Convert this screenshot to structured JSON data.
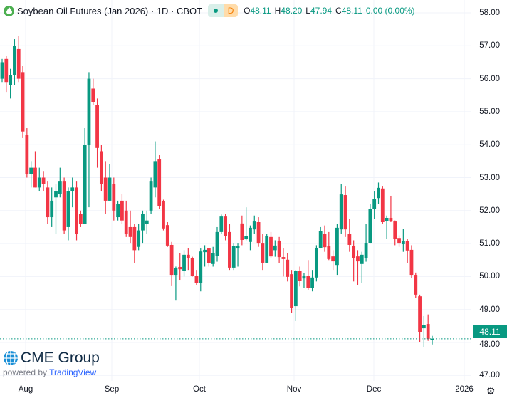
{
  "header": {
    "title": "Soybean Oil Futures (Jan 2026) · 1D · CBOT",
    "badge_letter": "D",
    "o_label": "O",
    "o": "48.11",
    "h_label": "H",
    "h": "48.20",
    "l_label": "L",
    "l": "47.94",
    "c_label": "C",
    "c": "48.11",
    "change": "0.00 (0.00%)"
  },
  "colors": {
    "up": "#089981",
    "down": "#f23645",
    "grid": "#f0f3fa"
  },
  "branding": {
    "logo": "CME Group",
    "powered": "powered by",
    "tv": "TradingView"
  },
  "chart_data": {
    "type": "candlestick",
    "title": "Soybean Oil Futures (Jan 2026) · 1D · CBOT",
    "ylim": [
      47,
      58
    ],
    "y_ticks": [
      "58.00",
      "57.00",
      "56.00",
      "55.00",
      "54.00",
      "53.00",
      "52.00",
      "51.00",
      "50.00",
      "49.00",
      "48.00",
      "47.00"
    ],
    "x_ticks": [
      "Aug",
      "Sep",
      "Oct",
      "Nov",
      "Dec",
      "2026"
    ],
    "last_price": "48.11",
    "grid": true,
    "candles_ohlc": [
      [
        56.0,
        56.6,
        55.9,
        56.5
      ],
      [
        56.6,
        56.7,
        55.6,
        55.9
      ],
      [
        55.8,
        56.3,
        55.4,
        56.1
      ],
      [
        56.1,
        57.2,
        55.8,
        57.0
      ],
      [
        56.9,
        57.3,
        55.9,
        56.0
      ],
      [
        56.2,
        56.4,
        54.2,
        54.4
      ],
      [
        54.3,
        54.5,
        53.0,
        53.1
      ],
      [
        53.1,
        53.5,
        52.7,
        53.3
      ],
      [
        53.3,
        53.8,
        52.7,
        52.7
      ],
      [
        52.7,
        53.3,
        52.6,
        53.0
      ],
      [
        53.0,
        53.2,
        52.6,
        52.8
      ],
      [
        52.7,
        52.9,
        51.6,
        51.8
      ],
      [
        51.8,
        52.7,
        51.5,
        52.3
      ],
      [
        52.4,
        52.8,
        51.3,
        52.6
      ],
      [
        52.5,
        53.3,
        52.4,
        52.9
      ],
      [
        52.9,
        53.0,
        51.3,
        51.4
      ],
      [
        51.5,
        52.7,
        51.1,
        52.6
      ],
      [
        52.6,
        53.0,
        52.1,
        52.7
      ],
      [
        52.7,
        52.9,
        51.1,
        51.3
      ],
      [
        51.9,
        52.0,
        51.5,
        51.6
      ],
      [
        51.6,
        54.5,
        51.6,
        54.0
      ],
      [
        54.0,
        56.2,
        52.1,
        56.0
      ],
      [
        55.7,
        56.0,
        55.2,
        55.3
      ],
      [
        55.2,
        55.4,
        53.3,
        53.9
      ],
      [
        53.8,
        54.0,
        52.6,
        52.8
      ],
      [
        53.0,
        53.5,
        51.9,
        52.3
      ],
      [
        52.3,
        53.4,
        52.3,
        53.0
      ],
      [
        52.8,
        53.0,
        51.7,
        52.0
      ],
      [
        51.8,
        52.3,
        51.7,
        52.2
      ],
      [
        52.3,
        52.5,
        51.6,
        51.7
      ],
      [
        52.0,
        52.3,
        51.2,
        51.3
      ],
      [
        51.5,
        52.0,
        51.0,
        51.2
      ],
      [
        51.5,
        51.6,
        50.4,
        50.8
      ],
      [
        50.9,
        51.6,
        50.8,
        51.4
      ],
      [
        51.4,
        52.0,
        51.0,
        51.9
      ],
      [
        51.6,
        52.0,
        51.3,
        51.7
      ],
      [
        52.0,
        53.0,
        51.9,
        52.9
      ],
      [
        52.7,
        54.1,
        52.4,
        53.5
      ],
      [
        53.55,
        53.68,
        52.05,
        52.13
      ],
      [
        52.28,
        52.33,
        51.4,
        51.46
      ],
      [
        51.56,
        51.65,
        50.9,
        50.94
      ],
      [
        50.96,
        51.05,
        49.73,
        50.05
      ],
      [
        50.05,
        50.3,
        49.27,
        50.25
      ],
      [
        50.29,
        50.7,
        49.9,
        50.22
      ],
      [
        50.18,
        50.8,
        50.0,
        50.66
      ],
      [
        50.66,
        50.85,
        50.2,
        50.55
      ],
      [
        50.57,
        50.6,
        50.0,
        50.03
      ],
      [
        50.03,
        50.2,
        49.75,
        49.81
      ],
      [
        49.81,
        50.85,
        49.55,
        50.76
      ],
      [
        50.74,
        50.95,
        50.3,
        50.81
      ],
      [
        50.85,
        50.85,
        50.3,
        50.4
      ],
      [
        50.38,
        50.9,
        50.3,
        50.72
      ],
      [
        50.63,
        51.5,
        50.45,
        51.35
      ],
      [
        51.35,
        51.88,
        51.3,
        51.82
      ],
      [
        51.82,
        51.9,
        51.1,
        51.24
      ],
      [
        51.35,
        51.6,
        50.2,
        50.27
      ],
      [
        50.27,
        51.0,
        50.2,
        50.92
      ],
      [
        50.85,
        51.0,
        50.3,
        50.92
      ],
      [
        51.61,
        51.85,
        50.95,
        51.11
      ],
      [
        51.13,
        52.1,
        51.1,
        51.22
      ],
      [
        51.05,
        51.55,
        50.8,
        51.48
      ],
      [
        51.43,
        51.85,
        51.3,
        51.67
      ],
      [
        51.65,
        51.8,
        50.9,
        51.0
      ],
      [
        51.0,
        51.3,
        50.2,
        50.42
      ],
      [
        50.42,
        51.3,
        50.4,
        51.22
      ],
      [
        51.2,
        51.35,
        50.55,
        50.61
      ],
      [
        50.8,
        51.1,
        50.6,
        50.94
      ],
      [
        51.09,
        51.2,
        50.4,
        50.59
      ],
      [
        50.59,
        50.85,
        50.0,
        50.53
      ],
      [
        50.51,
        50.7,
        49.85,
        49.99
      ],
      [
        50.07,
        50.2,
        48.9,
        49.04
      ],
      [
        49.1,
        50.2,
        48.65,
        50.18
      ],
      [
        50.18,
        50.3,
        49.7,
        49.86
      ],
      [
        49.94,
        50.1,
        49.65,
        50.01
      ],
      [
        50.01,
        50.5,
        49.6,
        49.66
      ],
      [
        49.66,
        50.2,
        49.55,
        49.97
      ],
      [
        49.97,
        50.95,
        49.85,
        50.87
      ],
      [
        50.87,
        51.5,
        50.85,
        51.39
      ],
      [
        51.3,
        51.55,
        50.75,
        50.89
      ],
      [
        50.92,
        51.35,
        50.5,
        50.53
      ],
      [
        50.61,
        50.8,
        50.2,
        50.46
      ],
      [
        50.35,
        51.6,
        50.05,
        51.48
      ],
      [
        51.43,
        52.8,
        51.3,
        52.49
      ],
      [
        52.47,
        52.75,
        51.2,
        51.43
      ],
      [
        51.3,
        51.75,
        50.75,
        50.96
      ],
      [
        50.92,
        51.1,
        49.85,
        50.55
      ],
      [
        50.61,
        50.8,
        49.75,
        50.46
      ],
      [
        50.38,
        50.75,
        49.8,
        50.66
      ],
      [
        50.57,
        51.6,
        50.45,
        51.02
      ],
      [
        51.02,
        52.2,
        51.0,
        52.04
      ],
      [
        52.04,
        52.6,
        51.75,
        52.36
      ],
      [
        52.38,
        52.85,
        52.2,
        52.69
      ],
      [
        52.67,
        52.75,
        51.6,
        51.65
      ],
      [
        51.69,
        51.85,
        51.15,
        51.78
      ],
      [
        51.78,
        52.45,
        51.65,
        51.67
      ],
      [
        51.67,
        51.7,
        50.95,
        51.15
      ],
      [
        51.17,
        51.25,
        50.9,
        51.0
      ],
      [
        50.98,
        51.45,
        50.75,
        51.07
      ],
      [
        51.07,
        51.15,
        50.4,
        50.79
      ],
      [
        50.81,
        50.95,
        49.95,
        50.05
      ],
      [
        50.05,
        50.12,
        49.35,
        49.45
      ],
      [
        49.4,
        49.45,
        48.0,
        48.32
      ],
      [
        48.43,
        48.8,
        47.85,
        48.52
      ],
      [
        48.56,
        48.85,
        48.05,
        48.11
      ],
      [
        48.11,
        48.2,
        47.94,
        48.11
      ]
    ]
  }
}
